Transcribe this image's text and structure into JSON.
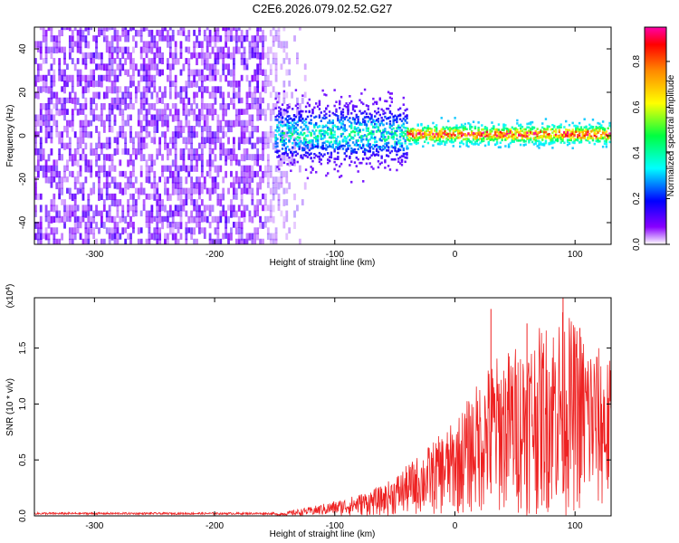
{
  "title": "C2E6.2026.079.02.52.G27",
  "chart_data": [
    {
      "type": "heatmap",
      "xlabel": "Height of straight line (km)",
      "ylabel": "Frequency (Hz)",
      "xlim": [
        -350,
        130
      ],
      "ylim": [
        -50,
        50
      ],
      "xticks": [
        -300,
        -200,
        -100,
        0,
        100
      ],
      "yticks": [
        -40,
        -20,
        0,
        20,
        40
      ],
      "colorbar": {
        "label": "Normalized spectral amplitude",
        "range": [
          0.0,
          0.95
        ],
        "ticks": [
          "0.0",
          "0.2",
          "0.4",
          "0.6",
          "0.8"
        ],
        "tick_values": [
          0.0,
          0.2,
          0.4,
          0.6,
          0.8
        ]
      },
      "regions": [
        {
          "x_range": [
            -350,
            -150
          ],
          "description": "broadband noise",
          "amplitude": 0.1
        },
        {
          "x_range": [
            -150,
            -40
          ],
          "center_hz": 0,
          "spread_hz": 12,
          "amplitude_range": [
            0.1,
            0.45
          ]
        },
        {
          "x_range": [
            -40,
            130
          ],
          "center_hz": 0,
          "spread_hz": 4,
          "amplitude_range": [
            0.3,
            0.95
          ]
        }
      ]
    },
    {
      "type": "line",
      "series": [
        {
          "name": "SNR",
          "color": "#ee2222"
        }
      ],
      "xlabel": "Height of straight line (km)",
      "ylabel": "SNR (10 * v/v)",
      "y_scale_label": "(x10",
      "y_scale_exp": "4",
      "xlim": [
        -350,
        130
      ],
      "ylim": [
        0,
        1.95
      ],
      "xticks": [
        -300,
        -200,
        -100,
        0,
        100
      ],
      "yticks": [
        0.0,
        0.5,
        1.0,
        1.5
      ],
      "ytick_labels": [
        "0.0",
        "0.5",
        "1.0",
        "1.5"
      ],
      "envelope": [
        {
          "x": -350,
          "y": 0.01
        },
        {
          "x": -150,
          "y": 0.02
        },
        {
          "x": -120,
          "y": 0.08
        },
        {
          "x": -90,
          "y": 0.16
        },
        {
          "x": -60,
          "y": 0.27
        },
        {
          "x": -40,
          "y": 0.45
        },
        {
          "x": -20,
          "y": 0.65
        },
        {
          "x": 0,
          "y": 0.85
        },
        {
          "x": 30,
          "y": 1.4
        },
        {
          "x": 60,
          "y": 1.6
        },
        {
          "x": 90,
          "y": 1.85
        },
        {
          "x": 130,
          "y": 1.4
        }
      ],
      "peaks": [
        {
          "x": 30,
          "y": 1.85
        },
        {
          "x": 60,
          "y": 1.72
        },
        {
          "x": 90,
          "y": 1.95
        },
        {
          "x": 104,
          "y": 1.68
        }
      ]
    }
  ]
}
